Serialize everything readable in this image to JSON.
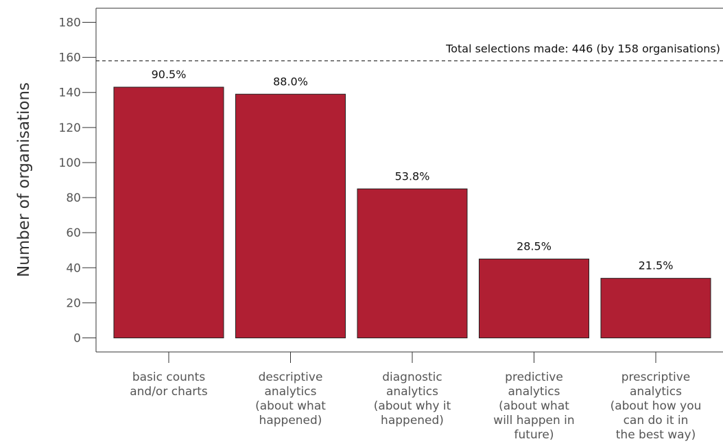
{
  "chart_data": {
    "type": "bar",
    "title": "",
    "xlabel": "",
    "ylabel": "Number of organisations",
    "ylim": [
      -8,
      188
    ],
    "yticks": [
      0,
      20,
      40,
      60,
      80,
      100,
      120,
      140,
      160,
      180
    ],
    "grid": false,
    "categories": [
      [
        "basic counts",
        "and/or charts"
      ],
      [
        "descriptive",
        "analytics",
        "(about what",
        "happened)"
      ],
      [
        "diagnostic",
        "analytics",
        "(about why it",
        "happened)"
      ],
      [
        "predictive",
        "analytics",
        "(about what",
        "will happen in",
        "future)"
      ],
      [
        "prescriptive",
        "analytics",
        "(about how you",
        "can do it in",
        "the best way)"
      ]
    ],
    "values": [
      143,
      139,
      85,
      45,
      34
    ],
    "data_labels": [
      "90.5%",
      "88.0%",
      "53.8%",
      "28.5%",
      "21.5%"
    ],
    "bar_color": "#b01f33",
    "reference_line": {
      "value": 158,
      "style": "dashed",
      "label": "Total selections made: 446 (by 158 organisations)"
    }
  }
}
